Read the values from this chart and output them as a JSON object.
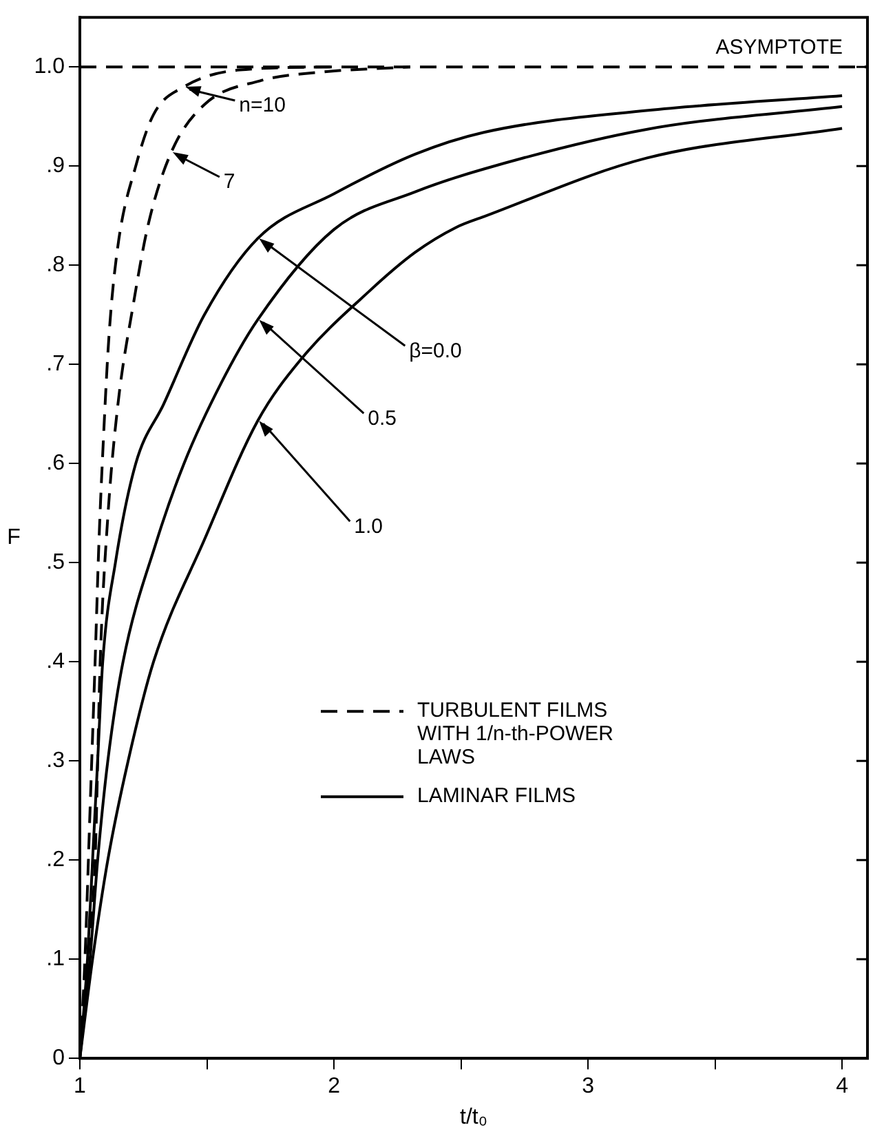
{
  "chart_data": {
    "type": "line",
    "xlabel": "t/t₀",
    "ylabel": "F",
    "xlim": [
      1,
      4.1
    ],
    "ylim": [
      0,
      1.05
    ],
    "xticks": [
      1,
      {
        "value": 1.5,
        "label": null
      },
      2,
      {
        "value": 2.5,
        "label": null
      },
      3,
      {
        "value": 3.5,
        "label": null
      },
      4
    ],
    "yticks": [
      0,
      {
        "value": 0.1,
        "label": ".1"
      },
      {
        "value": 0.2,
        "label": ".2"
      },
      {
        "value": 0.3,
        "label": ".3"
      },
      {
        "value": 0.4,
        "label": ".4"
      },
      {
        "value": 0.5,
        "label": ".5"
      },
      {
        "value": 0.6,
        "label": ".6"
      },
      {
        "value": 0.7,
        "label": ".7"
      },
      {
        "value": 0.8,
        "label": ".8"
      },
      {
        "value": 0.9,
        "label": ".9"
      },
      {
        "value": 1.0,
        "label": "1.0"
      }
    ],
    "grid": false,
    "legend": false,
    "marker": "none",
    "series": [
      {
        "color": "#000000",
        "line_style": "dashed",
        "x": [
          1,
          1.02,
          1.04,
          1.06,
          1.075,
          1.09,
          1.115,
          1.15,
          1.22,
          1.29,
          1.41,
          1.63,
          2.0
        ],
        "values": [
          0,
          0.1,
          0.25,
          0.4,
          0.52,
          0.61,
          0.73,
          0.82,
          0.9,
          0.952,
          0.98,
          0.997,
          1.0
        ]
      },
      {
        "color": "#000000",
        "line_style": "dashed",
        "x": [
          1,
          1.03,
          1.06,
          1.08,
          1.11,
          1.15,
          1.21,
          1.27,
          1.36,
          1.49,
          1.71,
          1.96,
          2.3
        ],
        "values": [
          0,
          0.1,
          0.2,
          0.4,
          0.546,
          0.66,
          0.76,
          0.842,
          0.914,
          0.962,
          0.986,
          0.995,
          1.0
        ]
      },
      {
        "color": "#000000",
        "line_style": "solid",
        "x": [
          1,
          1.03,
          1.05,
          1.07,
          1.09,
          1.14,
          1.22,
          1.33,
          1.49,
          1.7,
          2.0,
          2.32,
          2.59,
          3.23,
          4.0
        ],
        "values": [
          0,
          0.1,
          0.2,
          0.3,
          0.4,
          0.5,
          0.6,
          0.66,
          0.75,
          0.827,
          0.872,
          0.912,
          0.934,
          0.956,
          0.971
        ]
      },
      {
        "color": "#000000",
        "line_style": "solid",
        "x": [
          1,
          1.04,
          1.07,
          1.11,
          1.17,
          1.3,
          1.41,
          1.56,
          1.7,
          2.0,
          2.32,
          2.59,
          3.23,
          4.0
        ],
        "values": [
          0,
          0.1,
          0.2,
          0.3,
          0.4,
          0.52,
          0.6,
          0.683,
          0.745,
          0.836,
          0.874,
          0.897,
          0.937,
          0.96
        ]
      },
      {
        "color": "#000000",
        "line_style": "solid",
        "x": [
          1,
          1.05,
          1.11,
          1.19,
          1.29,
          1.49,
          1.7,
          1.87,
          2.14,
          2.32,
          2.48,
          2.59,
          3.23,
          4.0
        ],
        "values": [
          0,
          0.1,
          0.2,
          0.3,
          0.4,
          0.523,
          0.643,
          0.705,
          0.774,
          0.813,
          0.838,
          0.849,
          0.908,
          0.938
        ]
      }
    ],
    "ref_lines": [
      {
        "axis": "y",
        "value": 1.0,
        "label": "ASYMPTOTE",
        "line_style": "dashed",
        "color": "#000000"
      }
    ],
    "annotations": [
      {
        "text": "n=10",
        "x": 1.41,
        "y": 0.98
      },
      {
        "text": "7",
        "x": 1.36,
        "y": 0.914
      },
      {
        "text": "β=0.0",
        "x": 1.7,
        "y": 0.827
      },
      {
        "text": "0.5",
        "x": 1.7,
        "y": 0.745
      },
      {
        "text": "1.0",
        "x": 1.7,
        "y": 0.643
      },
      "TURBULENT FILMS WITH 1/n-th-POWER LAWS",
      "LAMINAR FILMS"
    ]
  }
}
